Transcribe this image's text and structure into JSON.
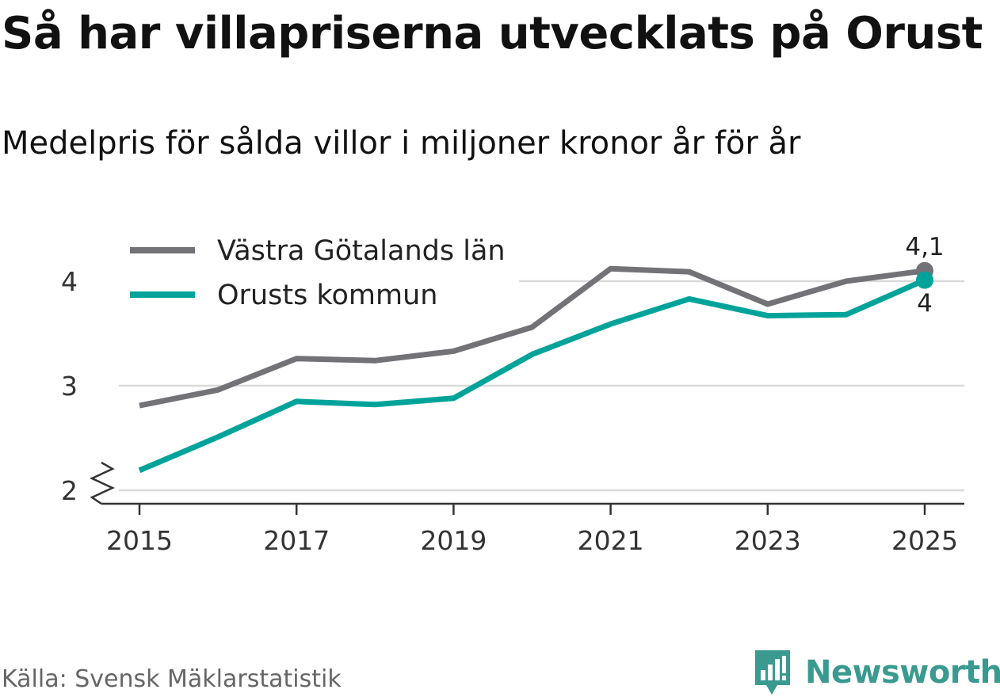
{
  "title": "Så har villapriserna utvecklats på Orust",
  "subtitle": "Medelpris för sålda villor i miljoner kronor år för år",
  "source": "Källa: Svensk Mäklarstatistik",
  "brand": {
    "name": "Newsworthy",
    "icon": "newsworthy-logo-icon",
    "color": "#3a9a8f"
  },
  "chart_data": {
    "type": "line",
    "x": [
      2015,
      2016,
      2017,
      2018,
      2019,
      2020,
      2021,
      2022,
      2023,
      2024,
      2025
    ],
    "x_ticks": [
      "2015",
      "2017",
      "2019",
      "2021",
      "2023",
      "2025"
    ],
    "y_ticks": [
      "2",
      "3",
      "4"
    ],
    "ylim": [
      2,
      4.35
    ],
    "axis_break": true,
    "grid": true,
    "legend_position": "top-left",
    "series": [
      {
        "name": "Västra Götalands län",
        "color": "#737277",
        "values": [
          2.81,
          2.96,
          3.26,
          3.24,
          3.33,
          3.56,
          4.12,
          4.09,
          3.78,
          4.0,
          4.1
        ],
        "end_label": "4,1"
      },
      {
        "name": "Orusts kommun",
        "color": "#00a39a",
        "values": [
          2.19,
          2.51,
          2.85,
          2.82,
          2.88,
          3.3,
          3.59,
          3.83,
          3.67,
          3.68,
          4.01
        ],
        "end_label": "4"
      }
    ]
  }
}
